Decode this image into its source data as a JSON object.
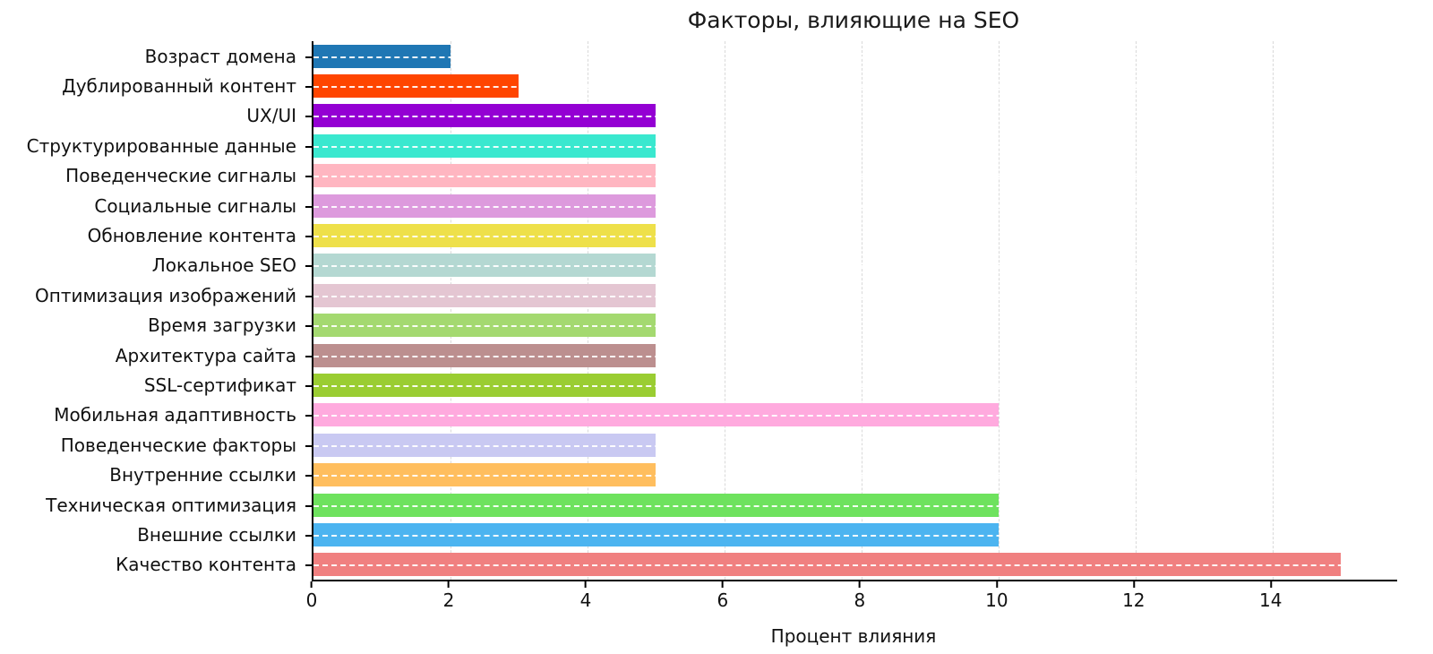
{
  "figure": {
    "background": "#ffffff",
    "axis_color": "#000000"
  },
  "chart_data": {
    "type": "bar",
    "orientation": "horizontal",
    "title": "Факторы, влияющие на SEO",
    "xlabel": "Процент влияния",
    "ylabel": "",
    "xlim": [
      0,
      15.82
    ],
    "xticks": [
      0,
      2,
      4,
      6,
      8,
      10,
      12,
      14
    ],
    "grid": {
      "style": "dashed",
      "vertical_color": "#d9d9d9",
      "horizontal_color": "#ffffff"
    },
    "legend": "none",
    "categories": [
      "Возраст домена",
      "Дублированный контент",
      "UX/UI",
      "Структурированные данные",
      "Поведенческие сигналы",
      "Социальные сигналы",
      "Обновление контента",
      "Локальное SEO",
      "Оптимизация изображений",
      "Время загрузки",
      "Архитектура сайта",
      "SSL-сертификат",
      "Мобильная адаптивность",
      "Поведенческие факторы",
      "Внутренние ссылки",
      "Техническая оптимизация",
      "Внешние ссылки",
      "Качество контента"
    ],
    "values": [
      2,
      3,
      5,
      5,
      5,
      5,
      5,
      5,
      5,
      5,
      5,
      5,
      10,
      5,
      5,
      10,
      10,
      15
    ],
    "bar_colors": [
      "#1f77b4",
      "#ff4500",
      "#9400d3",
      "#3ae8cf",
      "#ffb6c1",
      "#dd9add",
      "#eee04a",
      "#b4d8d2",
      "#e4c6d2",
      "#a4d970",
      "#bc8f8f",
      "#9acd32",
      "#ffaade",
      "#c9c9f2",
      "#ffbe5e",
      "#6ee25e",
      "#4cb4f0",
      "#f08080"
    ]
  }
}
